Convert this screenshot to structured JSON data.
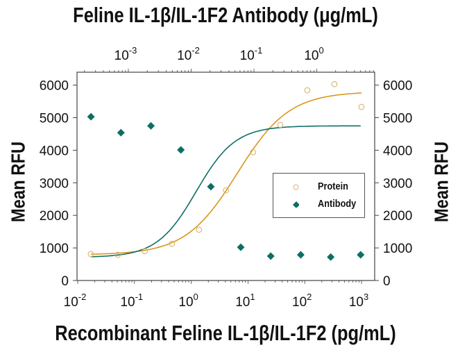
{
  "chart_data": {
    "type": "scatter",
    "title": "Feline IL-1β/IL-1F2 Antibody (μg/mL)",
    "xlabel": "Recombinant Feline IL-1β/IL-1F2 (pg/mL)",
    "ylabel": "Mean RFU",
    "ylabel_right": "Mean RFU",
    "x_scale": "log",
    "xlim": [
      0.01,
      1500
    ],
    "x2lim": [
      0.00015,
      2.3
    ],
    "ylim": [
      0,
      6400
    ],
    "yticks": [
      0,
      1000,
      2000,
      3000,
      4000,
      5000,
      6000
    ],
    "xticks_bottom": [
      "10^-2",
      "10^-1",
      "10^0",
      "10^1",
      "10^2",
      "10^3"
    ],
    "xticks_top": [
      "10^-3",
      "10^-2",
      "10^-1",
      "10^0"
    ],
    "grid": false,
    "legend_position": "center-right",
    "series": [
      {
        "name": "Protein",
        "axis": "bottom",
        "marker": "open-circle",
        "color": "#D9961A",
        "x": [
          0.017,
          0.051,
          0.152,
          0.457,
          1.37,
          4.1,
          12.3,
          37,
          111,
          333,
          1000
        ],
        "y": [
          810,
          790,
          900,
          1130,
          1560,
          2770,
          3940,
          4780,
          5840,
          6030,
          5330
        ],
        "fit": "4PL sigmoid rising from ~800 to ~5750"
      },
      {
        "name": "Antibody",
        "axis": "top",
        "marker": "filled-diamond",
        "color": "#0E6E64",
        "x": [
          0.000254,
          0.000762,
          0.00229,
          0.00686,
          0.0206,
          0.0617,
          0.185,
          0.556,
          1.67,
          5.0
        ],
        "y": [
          5030,
          4540,
          4750,
          4010,
          2880,
          1020,
          750,
          790,
          720,
          790
        ],
        "fit": "4PL sigmoid falling from ~4750 to ~720"
      }
    ]
  },
  "labels": {
    "top_title": "Feline IL-1β/IL-1F2 Antibody (μg/mL)",
    "bottom_title": "Recombinant Feline IL-1β/IL-1F2 (pg/mL)",
    "ylabel_left": "Mean RFU",
    "ylabel_right": "Mean RFU",
    "legend_protein": "Protein",
    "legend_antibody": "Antibody"
  }
}
